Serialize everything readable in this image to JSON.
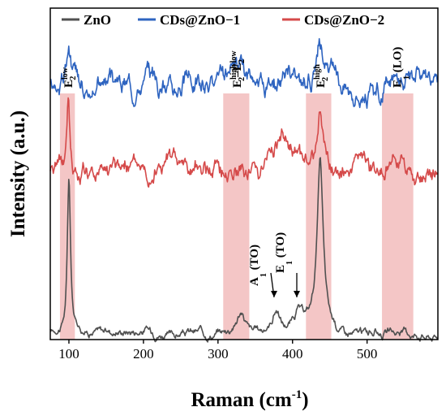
{
  "chart_data": {
    "type": "line",
    "xlabel": "Raman (cm",
    "xlabel_sup": "-1",
    "xlabel_close": ")",
    "ylabel": "Intensity (a.u.)",
    "xlim": [
      75,
      595
    ],
    "ylim": [
      0,
      1
    ],
    "xticks": [
      100,
      200,
      300,
      400,
      500
    ],
    "yticks_shown": false,
    "grid": false,
    "legend_position": "top",
    "series": [
      {
        "name": "ZnO",
        "color": "#505050",
        "offset": 0.02,
        "noise": 0.004,
        "peaks": [
          [
            100,
            0.47,
            2.5
          ],
          [
            203,
            0.01,
            12
          ],
          [
            330,
            0.06,
            8
          ],
          [
            378,
            0.065,
            6
          ],
          [
            408,
            0.045,
            6
          ],
          [
            437,
            0.5,
            5
          ],
          [
            540,
            0.008,
            10
          ]
        ]
      },
      {
        "name": "CDs@ZnO−1",
        "color": "#2E64C0",
        "offset": 0.77,
        "noise": 0.011,
        "peaks": [
          [
            99,
            0.13,
            3
          ],
          [
            265,
            0.015,
            10
          ],
          [
            330,
            0.035,
            12
          ],
          [
            388,
            0.02,
            15
          ],
          [
            437,
            0.1,
            6
          ],
          [
            540,
            0.012,
            12
          ]
        ]
      },
      {
        "name": "CDs@ZnO−2",
        "color": "#D54A4A",
        "offset": 0.515,
        "noise": 0.01,
        "peaks": [
          [
            99,
            0.22,
            2.8
          ],
          [
            170,
            0.01,
            15
          ],
          [
            330,
            0.02,
            12
          ],
          [
            385,
            0.07,
            18
          ],
          [
            437,
            0.18,
            5
          ],
          [
            540,
            0.03,
            10
          ]
        ]
      }
    ],
    "highlight_bands": [
      [
        88,
        108
      ],
      [
        307,
        342
      ],
      [
        418,
        452
      ],
      [
        520,
        562
      ]
    ],
    "band_color": "#F4C6C6",
    "mode_labels": [
      {
        "base": "E",
        "sub": "2",
        "sup": "low",
        "x": 99
      },
      {
        "base": "E",
        "sub": "2",
        "sup": "high",
        "post": "–E",
        "sub2": "2",
        "sup2": "low",
        "x": 325
      },
      {
        "base": "E",
        "sub": "2",
        "sup": "high",
        "x": 437
      },
      {
        "base": "E",
        "sub": "1",
        "post": " (LO)",
        "x": 540
      }
    ],
    "arrow_labels": [
      {
        "base": "A",
        "sub": "1",
        "post": " (TO)",
        "x": 378
      },
      {
        "base": "E",
        "sub": "1",
        "post": " (TO)",
        "x": 408
      }
    ]
  }
}
